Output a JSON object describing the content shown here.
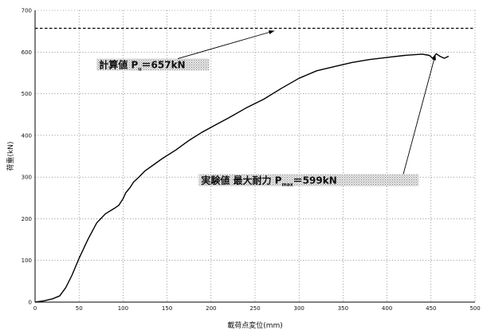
{
  "chart_data": {
    "type": "line",
    "xlabel": "載荷点変位(mm)",
    "ylabel": "荷重(kN)",
    "xlim": [
      0,
      500
    ],
    "ylim": [
      0,
      700
    ],
    "x_ticks": [
      0,
      50,
      100,
      150,
      200,
      250,
      300,
      350,
      400,
      450,
      500
    ],
    "y_ticks": [
      0,
      100,
      200,
      300,
      400,
      500,
      600,
      700
    ],
    "grid": true,
    "grid_style": "dotted",
    "series": [
      {
        "x": [
          0,
          10,
          20,
          28,
          35,
          42,
          50,
          60,
          70,
          80,
          90,
          95,
          100,
          103,
          108,
          112,
          118,
          125,
          135,
          145,
          160,
          175,
          190,
          205,
          220,
          240,
          260,
          280,
          300,
          320,
          340,
          360,
          380,
          400,
          420,
          440,
          448,
          452,
          456,
          460,
          465,
          470
        ],
        "y": [
          0,
          3,
          8,
          15,
          35,
          65,
          105,
          150,
          190,
          212,
          225,
          232,
          248,
          262,
          275,
          288,
          300,
          315,
          330,
          345,
          365,
          388,
          408,
          425,
          442,
          466,
          487,
          513,
          537,
          555,
          565,
          575,
          582,
          587,
          592,
          595,
          592,
          585,
          596,
          590,
          585,
          590
        ],
        "color": "#000000"
      }
    ],
    "reference_lines": [
      {
        "y": 657,
        "style": "dashed",
        "color": "#000000"
      }
    ],
    "annotations": [
      {
        "text": "計算値",
        "symbol": "P",
        "subscript": "u",
        "value_text": "＝657kN",
        "label_at": [
          70,
          565
        ],
        "label_width_data": 128,
        "arrow_to": [
          272,
          651
        ]
      },
      {
        "text": "実験値 最大耐力",
        "symbol": "P",
        "subscript": "max",
        "value_text": "＝599kN",
        "label_at": [
          186,
          288
        ],
        "label_width_data": 250,
        "arrow_to": [
          455,
          594
        ]
      }
    ]
  }
}
